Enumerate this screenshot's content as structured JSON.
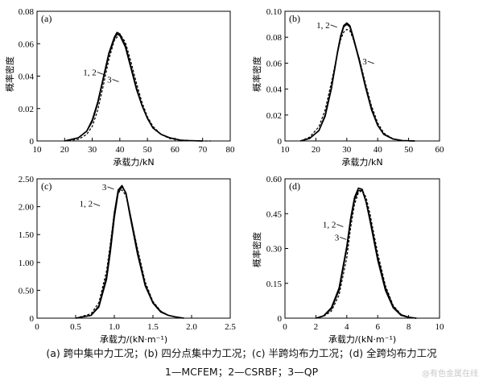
{
  "caption": {
    "line1": "(a)  跨中集中力工况；(b)  四分点集中力工况；(c)  半跨均布力工况；(d)  全跨均布力工况",
    "line2": "1—MCFEM；2—CSRBF；3—QP"
  },
  "watermark": "@有色金属在线",
  "chart_data": [
    {
      "panel": "(a)",
      "type": "line",
      "xlabel": "承载力/kN",
      "ylabel": "概率密度",
      "xlim": [
        10,
        80
      ],
      "ylim": [
        0,
        0.08
      ],
      "xticks": [
        10,
        20,
        30,
        40,
        50,
        60,
        70,
        80
      ],
      "xtick_labels": [
        "10",
        "20",
        "30",
        "40",
        "50",
        "60",
        "70",
        "80"
      ],
      "yticks": [
        0,
        0.02,
        0.04,
        0.06,
        0.08
      ],
      "ytick_labels": [
        "0",
        "0.02",
        "0.04",
        "0.06",
        "0.08"
      ],
      "annotations": [
        {
          "text": "1, 2",
          "x": 31.5,
          "y": 0.0405
        },
        {
          "text": "3",
          "x": 37.0,
          "y": 0.036
        }
      ],
      "series": [
        {
          "style": "solid",
          "x": [
            20,
            25,
            28,
            30,
            32,
            34,
            36,
            38,
            39,
            40,
            42,
            44,
            46,
            48,
            50,
            52,
            55,
            58,
            62,
            65,
            70
          ],
          "y": [
            0,
            0.002,
            0.006,
            0.012,
            0.023,
            0.038,
            0.053,
            0.063,
            0.066,
            0.065,
            0.058,
            0.045,
            0.032,
            0.022,
            0.014,
            0.008,
            0.004,
            0.002,
            0.0005,
            0.0002,
            0
          ]
        },
        {
          "style": "solid",
          "x": [
            20,
            25,
            28,
            30,
            32,
            34,
            36,
            38,
            39,
            40,
            42,
            44,
            46,
            48,
            50,
            52,
            55,
            58,
            62,
            65,
            70
          ],
          "y": [
            0,
            0.002,
            0.006,
            0.013,
            0.024,
            0.039,
            0.054,
            0.064,
            0.067,
            0.066,
            0.059,
            0.046,
            0.033,
            0.022,
            0.014,
            0.008,
            0.004,
            0.002,
            0.0005,
            0.0002,
            0
          ]
        },
        {
          "style": "dashed",
          "x": [
            20,
            25,
            28,
            30,
            32,
            34,
            36,
            38,
            40,
            42,
            44,
            46,
            48,
            50,
            52,
            55,
            58,
            62,
            65,
            70,
            73
          ],
          "y": [
            0,
            0.001,
            0.004,
            0.009,
            0.019,
            0.034,
            0.05,
            0.062,
            0.066,
            0.061,
            0.049,
            0.036,
            0.024,
            0.015,
            0.009,
            0.004,
            0.0015,
            0.0005,
            0.0002,
            0,
            0
          ]
        }
      ]
    },
    {
      "panel": "(b)",
      "type": "line",
      "xlabel": "承载力/kN",
      "ylabel": "概率密度",
      "xlim": [
        10,
        60
      ],
      "ylim": [
        0,
        0.1
      ],
      "xticks": [
        10,
        20,
        30,
        40,
        50,
        60
      ],
      "xtick_labels": [
        "10",
        "20",
        "30",
        "40",
        "50",
        "60"
      ],
      "yticks": [
        0,
        0.02,
        0.04,
        0.06,
        0.08,
        0.1
      ],
      "ytick_labels": [
        "0",
        "0.02",
        "0.04",
        "0.06",
        "0.08",
        "0.10"
      ],
      "annotations": [
        {
          "text": "1, 2",
          "x": 24.5,
          "y": 0.087
        },
        {
          "text": "3",
          "x": 36.5,
          "y": 0.059
        }
      ],
      "series": [
        {
          "style": "solid",
          "x": [
            15,
            18,
            21,
            23,
            25,
            27,
            28,
            29,
            30,
            31,
            32,
            34,
            36,
            38,
            40,
            42,
            45,
            48,
            52
          ],
          "y": [
            0,
            0.002,
            0.008,
            0.019,
            0.04,
            0.068,
            0.08,
            0.088,
            0.09,
            0.088,
            0.08,
            0.062,
            0.042,
            0.024,
            0.012,
            0.005,
            0.0015,
            0.0003,
            0
          ]
        },
        {
          "style": "solid",
          "x": [
            15,
            18,
            21,
            23,
            25,
            27,
            28,
            29,
            30,
            31,
            32,
            34,
            36,
            38,
            40,
            42,
            45,
            48,
            52
          ],
          "y": [
            0,
            0.002,
            0.008,
            0.02,
            0.041,
            0.069,
            0.081,
            0.089,
            0.091,
            0.089,
            0.081,
            0.063,
            0.043,
            0.025,
            0.012,
            0.005,
            0.0015,
            0.0003,
            0
          ]
        },
        {
          "style": "dashed",
          "x": [
            15,
            18,
            21,
            23,
            25,
            27,
            28,
            29,
            30,
            31,
            32,
            34,
            36,
            38,
            40,
            42,
            45,
            48,
            52
          ],
          "y": [
            0,
            0.003,
            0.011,
            0.024,
            0.045,
            0.068,
            0.078,
            0.084,
            0.086,
            0.085,
            0.079,
            0.064,
            0.045,
            0.027,
            0.014,
            0.006,
            0.0015,
            0.0003,
            0
          ]
        }
      ]
    },
    {
      "panel": "(c)",
      "type": "line",
      "xlabel": "承载力/(kN·m⁻¹)",
      "ylabel": "",
      "xlim": [
        0,
        2.5
      ],
      "ylim": [
        0,
        2.5
      ],
      "xticks": [
        0,
        0.5,
        1.0,
        1.5,
        2.0,
        2.5
      ],
      "xtick_labels": [
        "0",
        "0.5",
        "1.0",
        "1.5",
        "2.0",
        "2.5"
      ],
      "yticks": [
        0,
        0.5,
        1.0,
        1.5,
        2.0,
        2.5
      ],
      "ytick_labels": [
        "0",
        "0.50",
        "1.00",
        "1.50",
        "2.00",
        "2.50"
      ],
      "annotations": [
        {
          "text": "3",
          "x": 0.9,
          "y": 2.3
        },
        {
          "text": "1, 2",
          "x": 0.72,
          "y": 2.0
        }
      ],
      "series": [
        {
          "style": "solid",
          "x": [
            0.5,
            0.7,
            0.8,
            0.9,
            0.95,
            1.0,
            1.05,
            1.1,
            1.15,
            1.2,
            1.3,
            1.4,
            1.5,
            1.6,
            1.7,
            1.8,
            1.9
          ],
          "y": [
            0,
            0.05,
            0.2,
            0.7,
            1.2,
            1.8,
            2.25,
            2.36,
            2.25,
            1.9,
            1.2,
            0.6,
            0.28,
            0.12,
            0.05,
            0.02,
            0
          ]
        },
        {
          "style": "solid",
          "x": [
            0.5,
            0.7,
            0.8,
            0.9,
            0.95,
            1.0,
            1.05,
            1.1,
            1.15,
            1.2,
            1.3,
            1.4,
            1.5,
            1.6,
            1.7,
            1.8,
            1.9
          ],
          "y": [
            0,
            0.05,
            0.22,
            0.75,
            1.28,
            1.88,
            2.3,
            2.38,
            2.24,
            1.86,
            1.15,
            0.58,
            0.27,
            0.11,
            0.05,
            0.02,
            0
          ]
        },
        {
          "style": "dashed",
          "x": [
            0.5,
            0.7,
            0.8,
            0.9,
            0.95,
            1.0,
            1.05,
            1.1,
            1.15,
            1.2,
            1.3,
            1.4,
            1.5,
            1.6,
            1.7,
            1.8,
            1.9
          ],
          "y": [
            0,
            0.08,
            0.28,
            0.85,
            1.35,
            1.9,
            2.25,
            2.3,
            2.2,
            1.9,
            1.25,
            0.65,
            0.3,
            0.13,
            0.05,
            0.02,
            0
          ]
        }
      ]
    },
    {
      "panel": "(d)",
      "type": "line",
      "xlabel": "承载力/(kN·m⁻¹)",
      "ylabel": "概率密度",
      "xlim": [
        0,
        10
      ],
      "ylim": [
        0,
        0.6
      ],
      "xticks": [
        0,
        2,
        4,
        6,
        8,
        10
      ],
      "xtick_labels": [
        "0",
        "2",
        "4",
        "6",
        "8",
        "10"
      ],
      "yticks": [
        0,
        0.15,
        0.3,
        0.45,
        0.6
      ],
      "ytick_labels": [
        "0",
        "0.15",
        "0.30",
        "0.45",
        "0.60"
      ],
      "annotations": [
        {
          "text": "1, 2",
          "x": 3.3,
          "y": 0.39
        },
        {
          "text": "3",
          "x": 3.5,
          "y": 0.335
        }
      ],
      "series": [
        {
          "style": "solid",
          "x": [
            2,
            2.5,
            3,
            3.5,
            4,
            4.25,
            4.5,
            4.75,
            5,
            5.25,
            5.5,
            6,
            6.5,
            7,
            7.5,
            8,
            8.5
          ],
          "y": [
            0,
            0.01,
            0.04,
            0.12,
            0.3,
            0.42,
            0.51,
            0.55,
            0.55,
            0.5,
            0.43,
            0.26,
            0.13,
            0.05,
            0.015,
            0.004,
            0
          ]
        },
        {
          "style": "solid",
          "x": [
            2,
            2.5,
            3,
            3.5,
            4,
            4.25,
            4.5,
            4.75,
            5,
            5.25,
            5.5,
            6,
            6.5,
            7,
            7.5,
            8,
            8.5
          ],
          "y": [
            0,
            0.01,
            0.045,
            0.13,
            0.31,
            0.43,
            0.52,
            0.56,
            0.555,
            0.5,
            0.42,
            0.25,
            0.12,
            0.045,
            0.013,
            0.003,
            0
          ]
        },
        {
          "style": "dashed",
          "x": [
            2,
            2.5,
            3,
            3.5,
            4,
            4.25,
            4.5,
            4.75,
            5,
            5.25,
            5.5,
            6,
            6.5,
            7,
            7.5,
            8,
            8.5
          ],
          "y": [
            0,
            0.008,
            0.03,
            0.1,
            0.26,
            0.39,
            0.49,
            0.54,
            0.55,
            0.52,
            0.45,
            0.28,
            0.14,
            0.055,
            0.017,
            0.004,
            0
          ]
        }
      ]
    }
  ]
}
